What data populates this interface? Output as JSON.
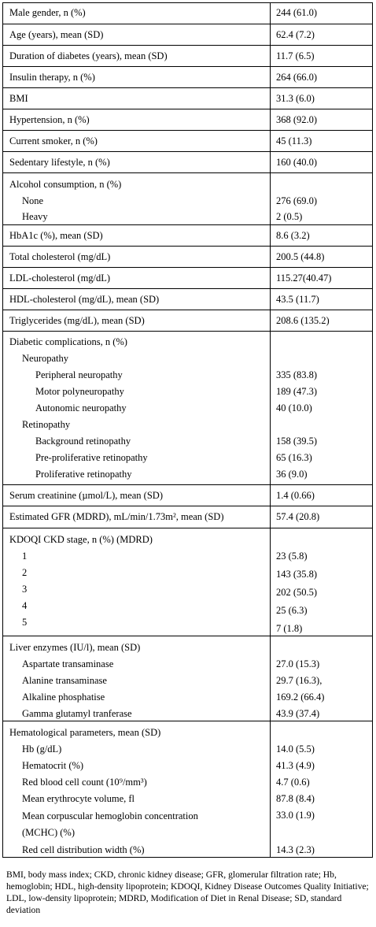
{
  "rows": [
    {
      "label": "Male gender, n (%)",
      "value": "244 (61.0)"
    },
    {
      "label": "Age (years), mean (SD)",
      "value": "62.4 (7.2)"
    },
    {
      "label": "Duration of diabetes (years), mean (SD)",
      "value": "11.7 (6.5)"
    },
    {
      "label": "Insulin therapy, n (%)",
      "value": "264 (66.0)"
    },
    {
      "label": "BMI",
      "value": "31.3 (6.0)"
    },
    {
      "label": "Hypertension, n (%)",
      "value": "368 (92.0)"
    },
    {
      "label": "Current smoker, n (%)",
      "value": "45 (11.3)"
    },
    {
      "label": "Sedentary lifestyle, n (%)",
      "value": "160 (40.0)"
    },
    {
      "label": "Alcohol consumption, n (%)",
      "value": "",
      "sub": [
        {
          "label": "None",
          "value": "276 (69.0)"
        },
        {
          "label": "Heavy",
          "value": "2 (0.5)"
        }
      ]
    },
    {
      "label": "HbA1c (%), mean (SD)",
      "value": "8.6 (3.2)"
    },
    {
      "label": "Total cholesterol (mg/dL)",
      "value": "200.5 (44.8)"
    },
    {
      "label": "LDL-cholesterol (mg/dL)",
      "value": "115.27(40.47)"
    },
    {
      "label": "HDL-cholesterol (mg/dL), mean (SD)",
      "value": "43.5 (11.7)"
    },
    {
      "label": "Triglycerides (mg/dL), mean (SD)",
      "value": "208.6 (135.2)"
    },
    {
      "label": "Diabetic complications, n (%)",
      "value": "",
      "groups": [
        {
          "label": "Neuropathy",
          "items": [
            {
              "label": "Peripheral neuropathy",
              "value": "335 (83.8)"
            },
            {
              "label": "Motor polyneuropathy",
              "value": "189 (47.3)"
            },
            {
              "label": "Autonomic neuropathy",
              "value": "40 (10.0)"
            }
          ]
        },
        {
          "label": "Retinopathy",
          "items": [
            {
              "label": "Background retinopathy",
              "value": "158 (39.5)"
            },
            {
              "label": "Pre-proliferative retinopathy",
              "value": "65 (16.3)"
            },
            {
              "label": "Proliferative retinopathy",
              "value": "36 (9.0)"
            }
          ]
        }
      ]
    },
    {
      "label": "Serum creatinine (µmol/L), mean (SD)",
      "value": "1.4 (0.66)"
    },
    {
      "label": "Estimated GFR (MDRD), mL/min/1.73m², mean (SD)",
      "value": "57.4 (20.8)"
    },
    {
      "label": "KDOQI CKD stage, n (%) (MDRD)",
      "value": "",
      "sub": [
        {
          "label": "1",
          "value": "23 (5.8)"
        },
        {
          "label": "2",
          "value": "143 (35.8)"
        },
        {
          "label": "3",
          "value": "202 (50.5)"
        },
        {
          "label": "4",
          "value": "25 (6.3)"
        },
        {
          "label": "5",
          "value": "7 (1.8)"
        }
      ]
    },
    {
      "label": "Liver enzymes (IU/l), mean (SD)",
      "value": "",
      "sub": [
        {
          "label": "Aspartate transaminase",
          "value": "27.0 (15.3)"
        },
        {
          "label": "Alanine transaminase",
          "value": "29.7 (16.3),"
        },
        {
          "label": "Alkaline phosphatise",
          "value": "169.2 (66.4)"
        },
        {
          "label": "Gamma glutamyl tranferase",
          "value": "43.9 (37.4)"
        }
      ]
    },
    {
      "label": "Hematological parameters, mean (SD)",
      "value": "",
      "sub": [
        {
          "label": "Hb (g/dL)",
          "value": "14.0 (5.5)"
        },
        {
          "label": "Hematocrit (%)",
          "value": "41.3 (4.9)"
        },
        {
          "label": "Red blood cell count (10⁹/mm³)",
          "value": "4.7 (0.6)"
        },
        {
          "label": "Mean erythrocyte volume, fl",
          "value": "87.8 (8.4)"
        },
        {
          "label": "Mean corpuscular hemoglobin concentration (MCHC) (%)",
          "value": "33.0 (1.9)"
        },
        {
          "label": "Red cell distribution width (%)",
          "value": "14.3 (2.3)"
        }
      ]
    }
  ],
  "footnote": "BMI, body mass index; CKD, chronic kidney disease; GFR, glomerular filtration rate; Hb, hemoglobin; HDL, high-density lipoprotein; KDOQI, Kidney Disease Outcomes Quality Initiative; LDL, low-density lipoprotein; MDRD, Modification of Diet in Renal Disease; SD, standard deviation"
}
